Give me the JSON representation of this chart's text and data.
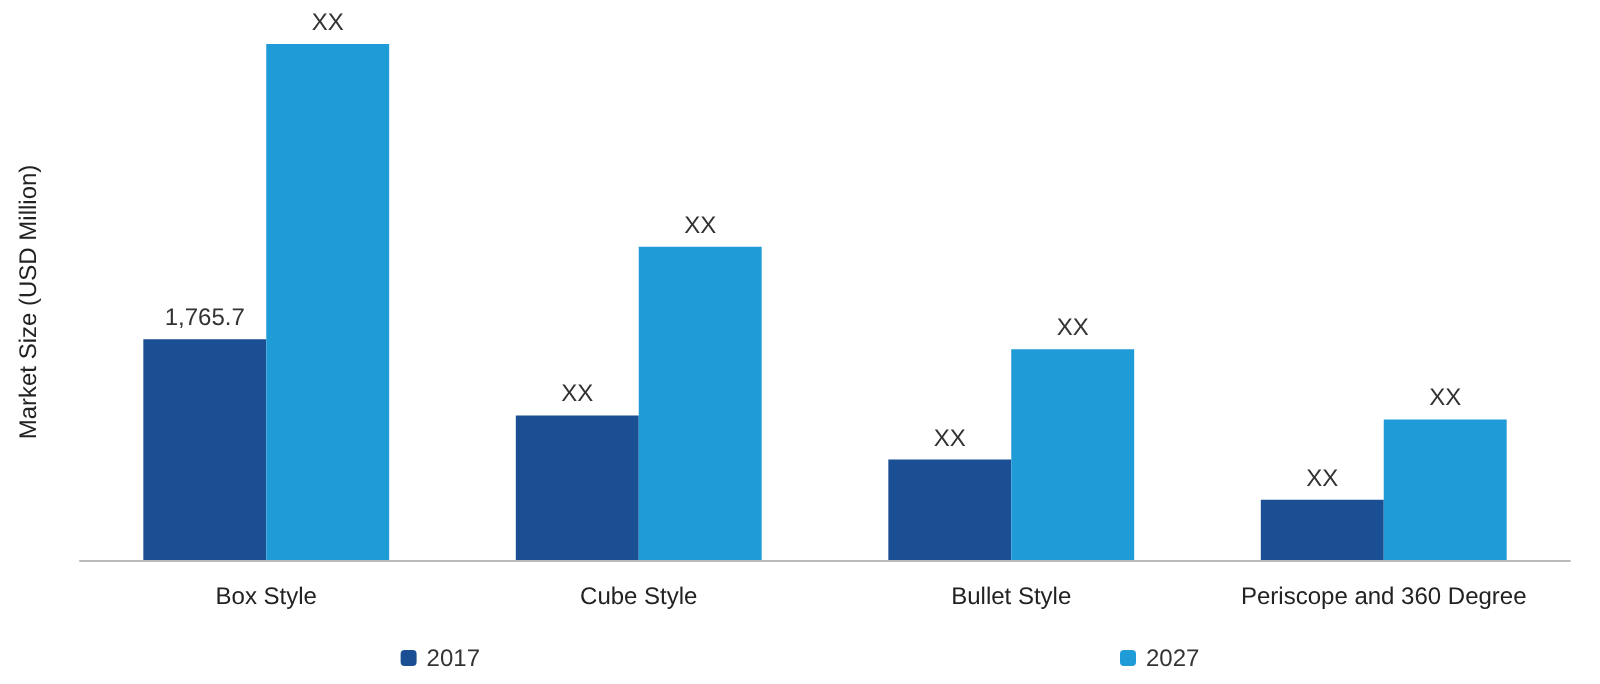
{
  "chart_data": {
    "type": "bar",
    "ylabel": "Market Size (USD Million)",
    "categories": [
      "Box Style",
      "Cube Style",
      "Bullet Style",
      "Periscope and 360 Degree"
    ],
    "series": [
      {
        "name": "2017",
        "color": "#1b4f93",
        "values": [
          1765.7,
          1156,
          803,
          482
        ],
        "value_labels": [
          "1,765.7",
          "XX",
          "XX",
          "XX"
        ]
      },
      {
        "name": "2027",
        "color": "#1f9bd7",
        "values": [
          4125,
          2504,
          1685,
          1124
        ],
        "value_labels": [
          "XX",
          "XX",
          "XX",
          "XX"
        ]
      }
    ],
    "tick_labels": "x",
    "legend": "bottom",
    "grid": false
  }
}
